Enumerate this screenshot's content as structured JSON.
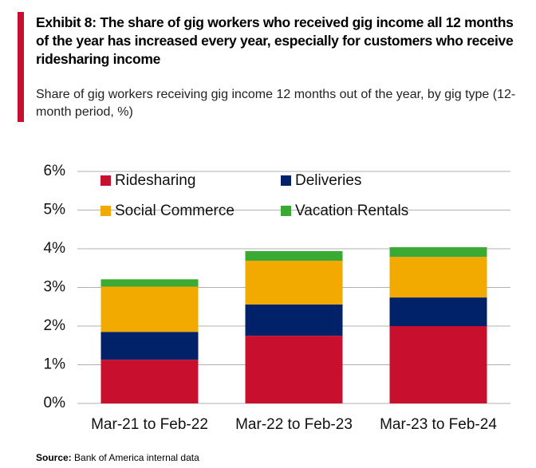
{
  "chart_data": {
    "type": "stacked-bar",
    "title": "Exhibit 8:  The share of gig workers who received gig income all 12 months of the year has increased every year, especially for customers who receive ridesharing income",
    "subtitle": "Share of gig workers receiving gig income 12 months out of the year, by gig type (12-month period, %)",
    "categories": [
      "Mar-21 to Feb-22",
      "Mar-22 to Feb-23",
      "Mar-23 to Feb-24"
    ],
    "series": [
      {
        "name": "Ridesharing",
        "color": "#c8102e",
        "values": [
          1.13,
          1.75,
          2.0
        ]
      },
      {
        "name": "Deliveries",
        "color": "#012169",
        "values": [
          0.72,
          0.81,
          0.74
        ]
      },
      {
        "name": "Social Commerce",
        "color": "#f2a900",
        "values": [
          1.17,
          1.13,
          1.05
        ]
      },
      {
        "name": "Vacation Rentals",
        "color": "#3aaa35",
        "values": [
          0.19,
          0.25,
          0.25
        ]
      }
    ],
    "ylim": [
      0,
      6
    ],
    "yticks": [
      {
        "value": 0,
        "label": "0%"
      },
      {
        "value": 1,
        "label": "1%"
      },
      {
        "value": 2,
        "label": "2%"
      },
      {
        "value": 3,
        "label": "3%"
      },
      {
        "value": 4,
        "label": "4%"
      },
      {
        "value": 5,
        "label": "5%"
      },
      {
        "value": 6,
        "label": "6%"
      }
    ],
    "grid": true,
    "legend": "top-left",
    "source": {
      "label": "Source:",
      "text": "Bank of America internal data"
    }
  }
}
